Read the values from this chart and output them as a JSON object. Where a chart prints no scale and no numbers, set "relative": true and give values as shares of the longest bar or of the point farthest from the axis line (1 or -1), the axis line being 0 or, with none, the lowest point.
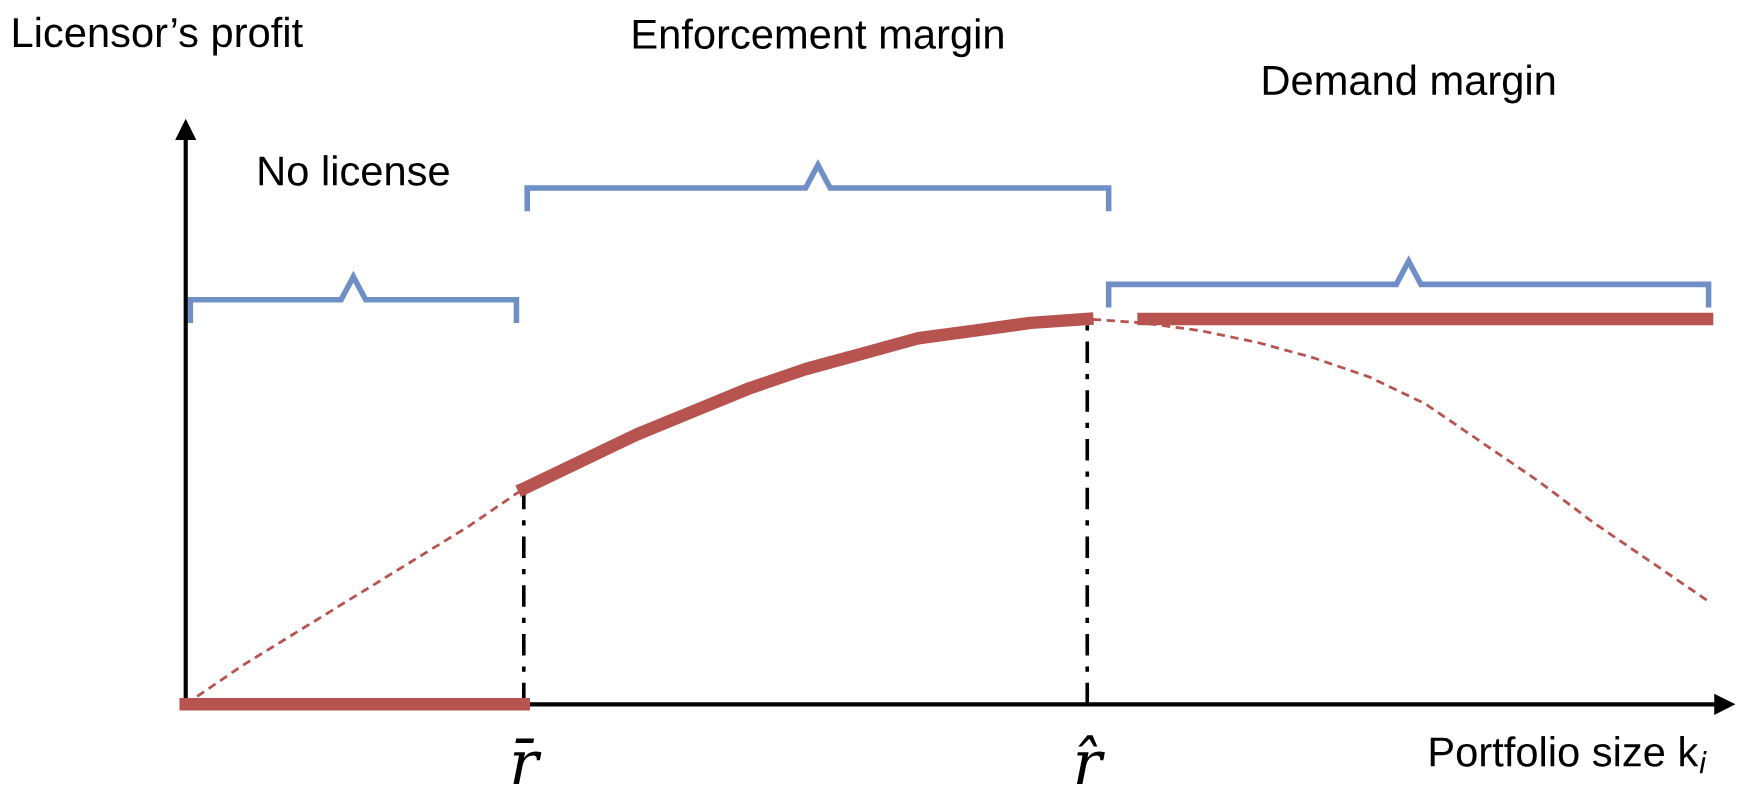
{
  "chart_data": {
    "type": "line",
    "relative": true,
    "xlabel": "Portfolio size k$_{i}$",
    "categories": [
      null,
      null,
      null,
      null,
      null,
      null,
      "r̄",
      null,
      null,
      null,
      null,
      null,
      null,
      null,
      null,
      null,
      "r̂",
      null,
      null,
      null,
      null,
      null,
      null,
      null,
      null,
      null,
      null,
      null
    ],
    "series": [
      {
        "values": [
          0,
          0.1,
          0.19,
          0.28,
          0.37,
          0.46,
          0.56,
          0.63,
          0.7,
          0.76,
          0.82,
          0.87,
          0.91,
          0.95,
          0.97,
          0.99,
          1,
          0.99,
          0.97,
          0.94,
          0.9,
          0.85,
          0.78,
          0.68,
          0.58,
          0.47,
          0.37,
          0.27
        ],
        "color": "#b85450",
        "line_style": "dashed"
      },
      {
        "values": [
          0,
          0,
          0,
          0,
          0,
          0,
          0,
          null,
          null,
          null,
          null,
          null,
          null,
          null,
          null,
          null,
          null,
          null,
          null,
          null,
          null,
          null,
          null,
          null,
          null,
          null,
          null,
          null
        ],
        "color": "#b85450",
        "line_style": "solid"
      },
      {
        "values": [
          null,
          null,
          null,
          null,
          null,
          null,
          0.56,
          0.63,
          0.7,
          0.76,
          0.82,
          0.87,
          0.91,
          0.95,
          0.97,
          0.99,
          1,
          null,
          null,
          null,
          null,
          null,
          null,
          null,
          null,
          null,
          null,
          null
        ],
        "color": "#b85450",
        "line_style": "solid"
      },
      {
        "values": [
          null,
          null,
          null,
          null,
          null,
          null,
          null,
          null,
          null,
          null,
          null,
          null,
          null,
          null,
          null,
          null,
          null,
          1,
          1,
          1,
          1,
          1,
          1,
          1,
          1,
          1,
          1,
          1
        ],
        "color": "#b85450",
        "line_style": "solid"
      }
    ],
    "ref_lines": [
      {
        "axis": "x",
        "value": "r̄",
        "color": "#000000",
        "line_style": "dashdot"
      },
      {
        "axis": "x",
        "value": "r̂",
        "color": "#000000",
        "line_style": "dashdot"
      }
    ],
    "annotations": [
      "Licensor’s profit",
      "No license",
      "Enforcement margin",
      "Demand margin"
    ]
  }
}
